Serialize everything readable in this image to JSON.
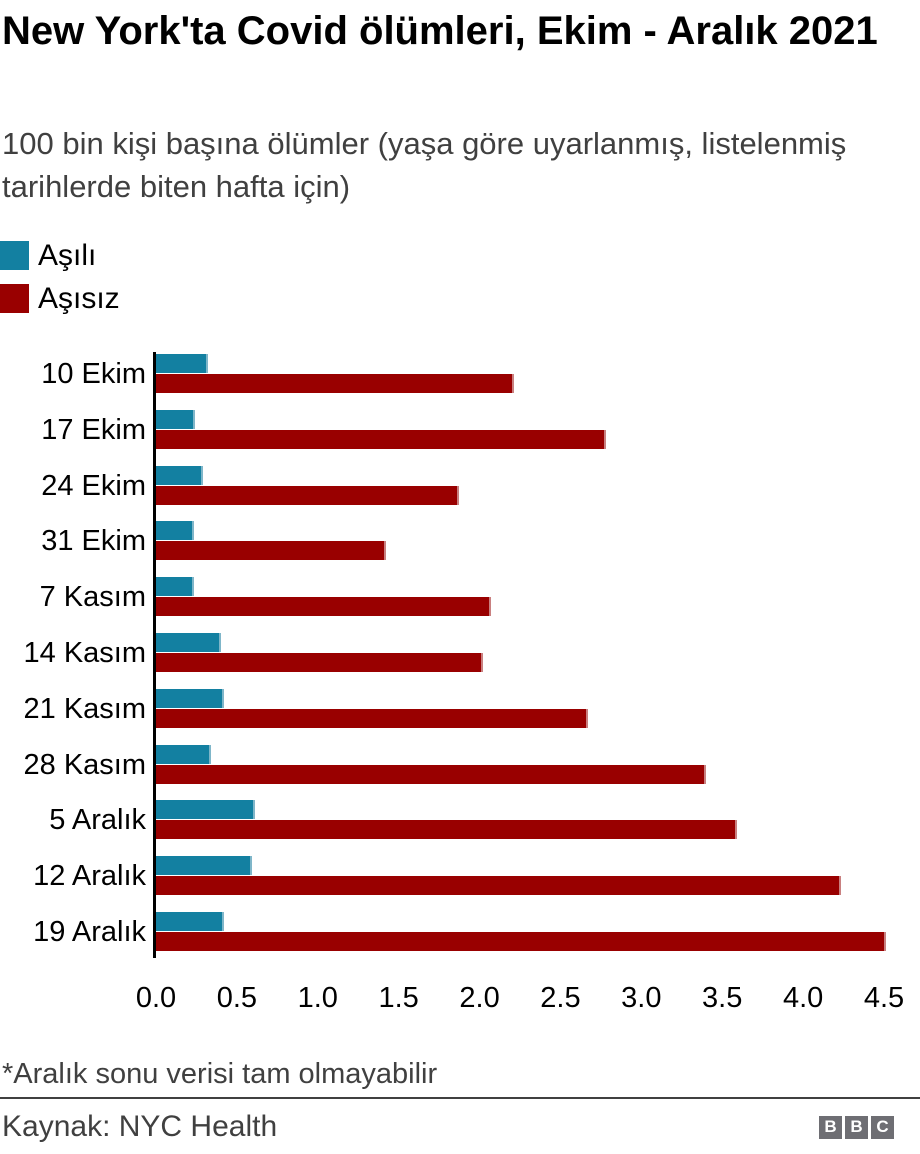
{
  "header": {
    "title": "New York'ta Covid ölümleri, Ekim - Aralık 2021",
    "subtitle": "100 bin kişi başına ölümler (yaşa göre uyarlanmış, listelenmiş tarihlerde biten hafta için)"
  },
  "chart_data": {
    "type": "bar",
    "orientation": "horizontal",
    "title": "New York'ta Covid ölümleri, Ekim - Aralık 2021",
    "subtitle": "100 bin kişi başına ölümler (yaşa göre uyarlanmış, listelenmiş tarihlerde biten hafta için)",
    "categories": [
      "10 Ekim",
      "17 Ekim",
      "24 Ekim",
      "31 Ekim",
      "7 Kasım",
      "14 Kasım",
      "21 Kasım",
      "28 Kasım",
      "5 Aralık",
      "12 Aralık",
      "19 Aralık"
    ],
    "series": [
      {
        "name": "Aşılı",
        "color": "#1380A1",
        "edge_color": "#7fb6c9",
        "values": [
          0.31,
          0.23,
          0.28,
          0.22,
          0.22,
          0.39,
          0.41,
          0.33,
          0.6,
          0.58,
          0.41
        ]
      },
      {
        "name": "Aşısız",
        "color": "#990000",
        "edge_color": "#c98080",
        "values": [
          2.2,
          2.77,
          1.86,
          1.41,
          2.06,
          2.01,
          2.66,
          3.39,
          3.58,
          4.22,
          4.5
        ]
      }
    ],
    "x_ticks": [
      "0.0",
      "0.5",
      "1.0",
      "1.5",
      "2.0",
      "2.5",
      "3.0",
      "3.5",
      "4.0",
      "4.5"
    ],
    "xlim": [
      0,
      4.5
    ],
    "xlabel": "",
    "ylabel": "",
    "grid": false,
    "legend_position": "top-left"
  },
  "footer": {
    "note": "*Aralık sonu verisi tam olmayabilir",
    "source": "Kaynak: NYC Health",
    "logo_letters": [
      "B",
      "B",
      "C"
    ]
  }
}
